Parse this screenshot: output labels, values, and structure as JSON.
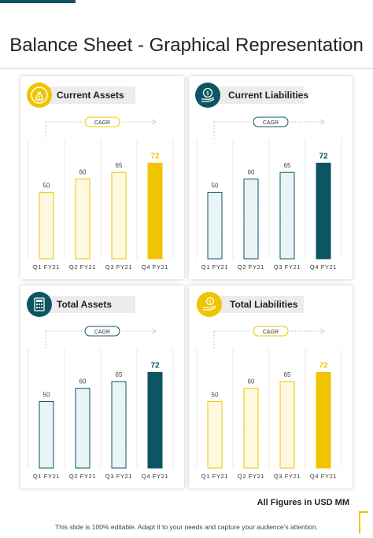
{
  "page": {
    "title": "Balance Sheet - Graphical Representation",
    "figures_note": "All Figures in USD MM",
    "footer": "This slide is 100% editable. Adapt it to your needs and capture your audience’s attention."
  },
  "colors": {
    "yellow": "#f0c400",
    "teal": "#0d5563",
    "light_teal": "#e6f2f4",
    "light_yellow": "#fdf8dc"
  },
  "panels": [
    {
      "label": "Current Assets",
      "icon": "money-bag-icon",
      "accent": "yellow",
      "cagr": "CAGR"
    },
    {
      "label": "Current Liabilities",
      "icon": "hand-money-icon",
      "accent": "teal",
      "cagr": "CAGR"
    },
    {
      "label": "Total Assets",
      "icon": "calculator-icon",
      "accent": "teal",
      "cagr": "CAGR"
    },
    {
      "label": "Total Liabilities",
      "icon": "hand-coin-icon",
      "accent": "yellow",
      "cagr": "CAGR"
    }
  ],
  "chart_data": [
    {
      "type": "bar",
      "title": "Current Assets",
      "categories": [
        "Q1 FY21",
        "Q2 FY21",
        "Q3 FY21",
        "Q4 FY21"
      ],
      "values": [
        50,
        60,
        65,
        72
      ],
      "highlight": 3,
      "ylim": [
        0,
        90
      ],
      "grid": false
    },
    {
      "type": "bar",
      "title": "Current Liabilities",
      "categories": [
        "Q1 FY21",
        "Q2 FY21",
        "Q3 FY21",
        "Q4 FY21"
      ],
      "values": [
        50,
        60,
        65,
        72
      ],
      "highlight": 3,
      "ylim": [
        0,
        90
      ],
      "grid": false
    },
    {
      "type": "bar",
      "title": "Total Assets",
      "categories": [
        "Q1 FY21",
        "Q2 FY21",
        "Q3 FY21",
        "Q4 FY21"
      ],
      "values": [
        50,
        60,
        65,
        72
      ],
      "highlight": 3,
      "ylim": [
        0,
        90
      ],
      "grid": false
    },
    {
      "type": "bar",
      "title": "Total Liabilities",
      "categories": [
        "Q1 FY21",
        "Q2 FY21",
        "Q3 FY21",
        "Q4 FY21"
      ],
      "values": [
        50,
        60,
        65,
        72
      ],
      "highlight": 3,
      "ylim": [
        0,
        90
      ],
      "grid": false
    }
  ]
}
